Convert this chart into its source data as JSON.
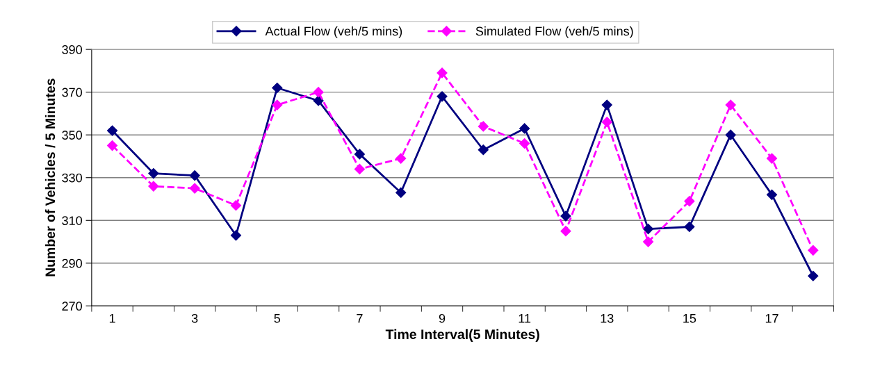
{
  "chart_data": {
    "type": "line",
    "xlabel": "Time Interval(5 Minutes)",
    "ylabel": "Number of Vehicles / 5 Minutes",
    "categories": [
      "1",
      null,
      "3",
      null,
      "5",
      null,
      "7",
      null,
      "9",
      null,
      "11",
      null,
      "13",
      null,
      "15",
      null,
      "17",
      null
    ],
    "series": [
      {
        "name": "Actual Flow (veh/5 mins)",
        "color": "#000080",
        "line_style": "solid",
        "values": [
          352,
          332,
          331,
          303,
          372,
          366,
          341,
          323,
          368,
          343,
          353,
          312,
          364,
          306,
          307,
          350,
          322,
          284
        ]
      },
      {
        "name": "Simulated Flow (veh/5 mins)",
        "color": "#ff00ff",
        "line_style": "dashed",
        "values": [
          345,
          326,
          325,
          317,
          364,
          370,
          334,
          339,
          379,
          354,
          346,
          305,
          356,
          300,
          319,
          364,
          339,
          296
        ]
      }
    ],
    "marker": "diamond",
    "ylim": [
      270,
      390
    ],
    "yticks": [
      270,
      290,
      310,
      330,
      350,
      370,
      390
    ],
    "grid": "y",
    "legend": "top"
  }
}
